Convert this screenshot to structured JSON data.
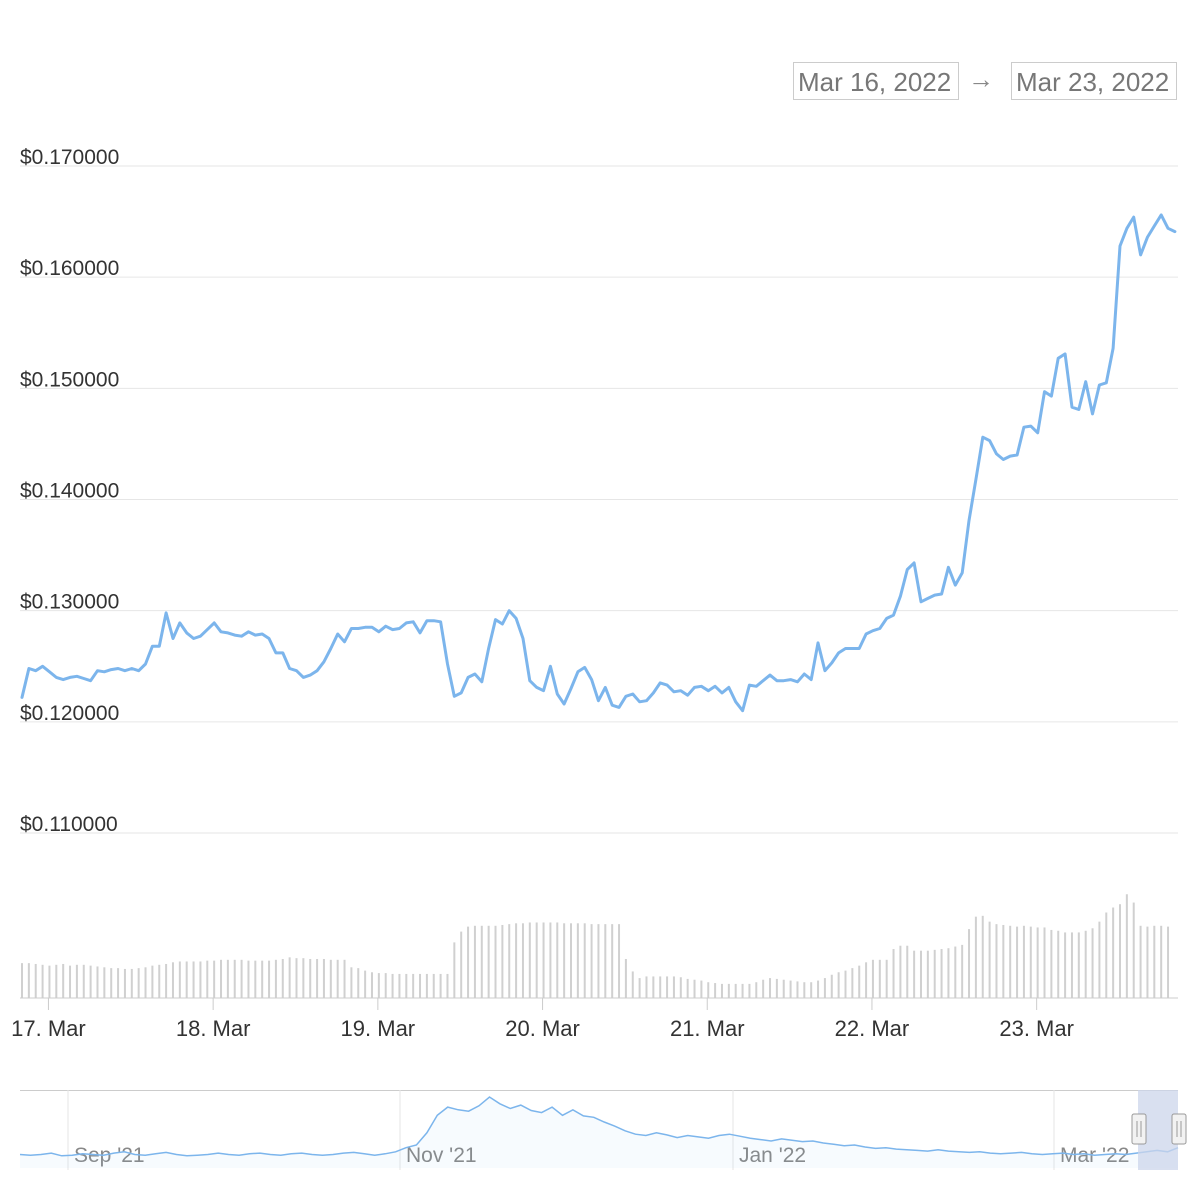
{
  "range_selector": {
    "from": "Mar 16, 2022",
    "arrow": "→",
    "to": "Mar 23, 2022"
  },
  "colors": {
    "line": "#7cb5ec",
    "volume": "#d0d0d0",
    "grid": "#e6e6e6",
    "navigator_mask": "#ccd6eb"
  },
  "chart_data": {
    "type": "line",
    "title": "",
    "xlabel": "",
    "ylabel": "",
    "ylim": [
      0.107,
      0.171
    ],
    "y_ticks": [
      "$0.170000",
      "$0.160000",
      "$0.150000",
      "$0.140000",
      "$0.130000",
      "$0.120000",
      "$0.110000"
    ],
    "x_ticks": [
      "17. Mar",
      "18. Mar",
      "19. Mar",
      "20. Mar",
      "21. Mar",
      "22. Mar",
      "23. Mar"
    ],
    "x_start": "2022-03-16T20:00",
    "x_step_hours": 1,
    "price": [
      0.1222,
      0.1248,
      0.1246,
      0.125,
      0.1245,
      0.124,
      0.1238,
      0.124,
      0.1241,
      0.1239,
      0.1237,
      0.1246,
      0.1245,
      0.1247,
      0.1248,
      0.1246,
      0.1248,
      0.1246,
      0.1252,
      0.1268,
      0.1268,
      0.1298,
      0.1275,
      0.1289,
      0.128,
      0.1275,
      0.1277,
      0.1283,
      0.1289,
      0.1281,
      0.128,
      0.1278,
      0.1277,
      0.1281,
      0.1278,
      0.1279,
      0.1275,
      0.1262,
      0.1262,
      0.1248,
      0.1246,
      0.124,
      0.1242,
      0.1246,
      0.1254,
      0.1266,
      0.1279,
      0.1272,
      0.1284,
      0.1284,
      0.1285,
      0.1285,
      0.1281,
      0.1286,
      0.1283,
      0.1284,
      0.1289,
      0.129,
      0.128,
      0.1291,
      0.1291,
      0.129,
      0.1252,
      0.1223,
      0.1226,
      0.124,
      0.1243,
      0.1236,
      0.1266,
      0.1292,
      0.1288,
      0.13,
      0.1293,
      0.1275,
      0.1237,
      0.1231,
      0.1228,
      0.125,
      0.1225,
      0.1216,
      0.123,
      0.1245,
      0.1249,
      0.1238,
      0.1219,
      0.1231,
      0.1215,
      0.1213,
      0.1223,
      0.1225,
      0.1218,
      0.1219,
      0.1226,
      0.1235,
      0.1233,
      0.1227,
      0.1228,
      0.1224,
      0.1231,
      0.1232,
      0.1228,
      0.1232,
      0.1226,
      0.1231,
      0.1218,
      0.121,
      0.1233,
      0.1232,
      0.1237,
      0.1242,
      0.1237,
      0.1237,
      0.1238,
      0.1236,
      0.1243,
      0.1238,
      0.1271,
      0.1246,
      0.1253,
      0.1262,
      0.1266,
      0.1266,
      0.1266,
      0.1279,
      0.1282,
      0.1284,
      0.1293,
      0.1296,
      0.1313,
      0.1337,
      0.1343,
      0.1308,
      0.1311,
      0.1314,
      0.1315,
      0.1339,
      0.1323,
      0.1334,
      0.1381,
      0.1418,
      0.1456,
      0.1453,
      0.1441,
      0.1436,
      0.1439,
      0.144,
      0.1465,
      0.1466,
      0.146,
      0.1497,
      0.1493,
      0.1527,
      0.1531,
      0.1483,
      0.1481,
      0.1506,
      0.1477,
      0.1503,
      0.1505,
      0.1536,
      0.1628,
      0.1644,
      0.1654,
      0.162,
      0.1636,
      0.1646,
      0.1656,
      0.1644,
      0.1641
    ],
    "volume_rel": [
      0.42,
      0.42,
      0.41,
      0.4,
      0.39,
      0.4,
      0.41,
      0.39,
      0.4,
      0.4,
      0.39,
      0.38,
      0.37,
      0.36,
      0.36,
      0.35,
      0.35,
      0.36,
      0.37,
      0.39,
      0.4,
      0.41,
      0.43,
      0.44,
      0.44,
      0.44,
      0.44,
      0.45,
      0.45,
      0.46,
      0.46,
      0.46,
      0.46,
      0.45,
      0.45,
      0.45,
      0.45,
      0.46,
      0.47,
      0.49,
      0.48,
      0.48,
      0.47,
      0.47,
      0.47,
      0.46,
      0.46,
      0.46,
      0.37,
      0.36,
      0.33,
      0.31,
      0.3,
      0.3,
      0.29,
      0.29,
      0.29,
      0.29,
      0.29,
      0.29,
      0.29,
      0.29,
      0.29,
      0.67,
      0.8,
      0.86,
      0.87,
      0.87,
      0.87,
      0.87,
      0.88,
      0.89,
      0.9,
      0.9,
      0.91,
      0.91,
      0.91,
      0.91,
      0.91,
      0.9,
      0.9,
      0.9,
      0.9,
      0.89,
      0.89,
      0.89,
      0.89,
      0.89,
      0.47,
      0.32,
      0.24,
      0.26,
      0.26,
      0.26,
      0.26,
      0.26,
      0.25,
      0.23,
      0.22,
      0.21,
      0.19,
      0.18,
      0.17,
      0.17,
      0.17,
      0.17,
      0.17,
      0.19,
      0.22,
      0.24,
      0.23,
      0.22,
      0.21,
      0.2,
      0.19,
      0.19,
      0.21,
      0.24,
      0.28,
      0.31,
      0.33,
      0.36,
      0.39,
      0.43,
      0.46,
      0.46,
      0.46,
      0.59,
      0.63,
      0.63,
      0.57,
      0.57,
      0.57,
      0.58,
      0.59,
      0.6,
      0.62,
      0.64,
      0.83,
      0.98,
      0.99,
      0.92,
      0.89,
      0.88,
      0.87,
      0.86,
      0.87,
      0.86,
      0.85,
      0.85,
      0.82,
      0.81,
      0.79,
      0.79,
      0.79,
      0.81,
      0.84,
      0.92,
      1.03,
      1.09,
      1.13,
      1.25,
      1.15,
      0.87,
      0.86,
      0.87,
      0.87,
      0.86
    ],
    "navigator": {
      "x_ticks": [
        "Sep '21",
        "Nov '21",
        "Jan '22",
        "Mar '22"
      ],
      "series": [
        0.2,
        0.19,
        0.2,
        0.22,
        0.18,
        0.19,
        0.21,
        0.2,
        0.19,
        0.22,
        0.24,
        0.2,
        0.19,
        0.21,
        0.23,
        0.2,
        0.18,
        0.19,
        0.2,
        0.22,
        0.2,
        0.19,
        0.21,
        0.22,
        0.2,
        0.19,
        0.21,
        0.22,
        0.2,
        0.19,
        0.2,
        0.22,
        0.23,
        0.21,
        0.19,
        0.21,
        0.24,
        0.3,
        0.34,
        0.52,
        0.78,
        0.9,
        0.86,
        0.84,
        0.92,
        1.05,
        0.95,
        0.88,
        0.93,
        0.85,
        0.82,
        0.9,
        0.78,
        0.86,
        0.77,
        0.75,
        0.68,
        0.62,
        0.55,
        0.5,
        0.48,
        0.52,
        0.49,
        0.45,
        0.48,
        0.46,
        0.44,
        0.48,
        0.5,
        0.47,
        0.44,
        0.42,
        0.4,
        0.43,
        0.41,
        0.39,
        0.4,
        0.37,
        0.35,
        0.33,
        0.34,
        0.31,
        0.29,
        0.3,
        0.28,
        0.27,
        0.26,
        0.25,
        0.27,
        0.25,
        0.24,
        0.23,
        0.24,
        0.22,
        0.21,
        0.22,
        0.23,
        0.21,
        0.2,
        0.21,
        0.22,
        0.2,
        0.21,
        0.19,
        0.2,
        0.21,
        0.2,
        0.22,
        0.24,
        0.26,
        0.24,
        0.3
      ],
      "selected_range": [
        "Mar 16, 2022",
        "Mar 23, 2022"
      ]
    }
  }
}
